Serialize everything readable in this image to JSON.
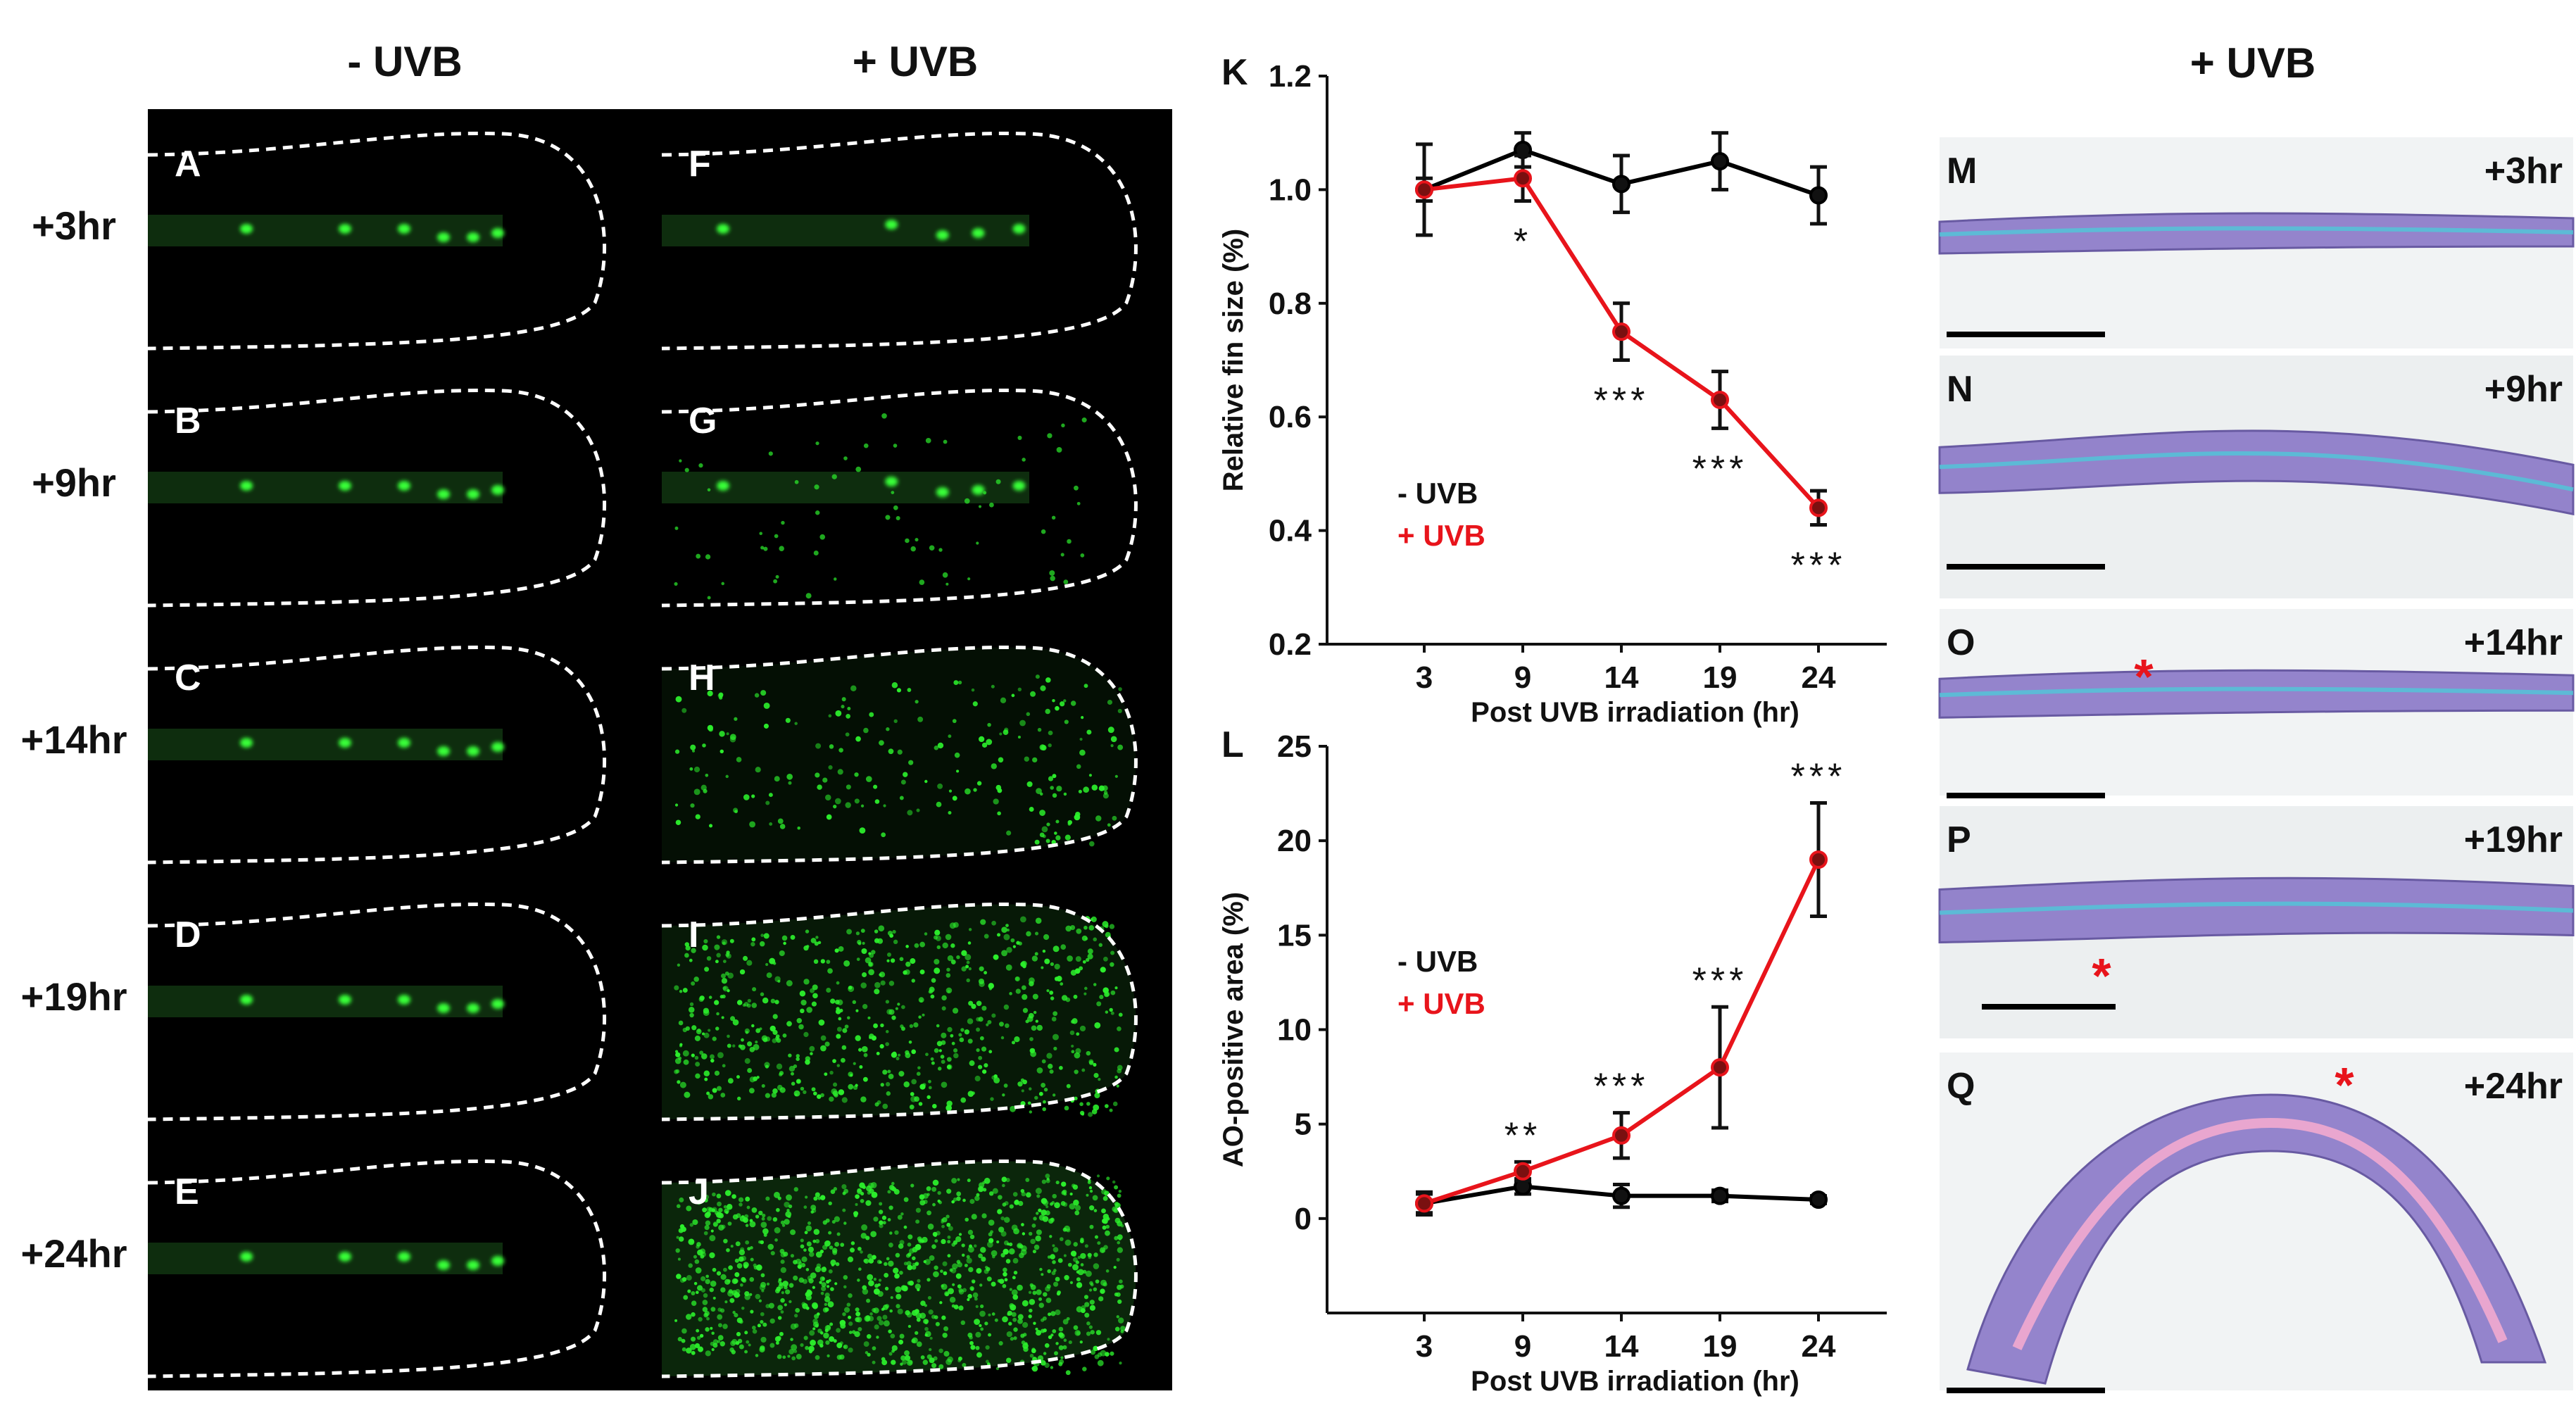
{
  "headers": {
    "minus": "- UVB",
    "plus": "+ UVB",
    "histo": "+ UVB"
  },
  "rows": [
    "+3hr",
    "+9hr",
    "+14hr",
    "+19hr",
    "+24hr"
  ],
  "panels_left": [
    "A",
    "B",
    "C",
    "D",
    "E"
  ],
  "panels_right": [
    "F",
    "G",
    "H",
    "I",
    "J"
  ],
  "histology": [
    {
      "panel": "M",
      "time": "+3hr"
    },
    {
      "panel": "N",
      "time": "+9hr"
    },
    {
      "panel": "O",
      "time": "+14hr"
    },
    {
      "panel": "P",
      "time": "+19hr"
    },
    {
      "panel": "Q",
      "time": "+24hr"
    }
  ],
  "chart_data": [
    {
      "panel": "K",
      "type": "line",
      "xlabel": "Post UVB irradiation (hr)",
      "ylabel": "Relative fin size (%)",
      "categories": [
        3,
        9,
        14,
        19,
        24
      ],
      "ylim": [
        0.2,
        1.2
      ],
      "yticks": [
        "0.2",
        "0.4",
        "0.6",
        "0.8",
        "1.0",
        "1.2"
      ],
      "series": [
        {
          "name": "- UVB",
          "color": "#000000",
          "values": [
            1.0,
            1.07,
            1.01,
            1.05,
            0.99
          ],
          "errors": [
            0.08,
            0.03,
            0.05,
            0.05,
            0.05
          ]
        },
        {
          "name": "+ UVB",
          "color": "#e8141b",
          "values": [
            1.0,
            1.02,
            0.75,
            0.63,
            0.44
          ],
          "errors": [
            0.02,
            0.04,
            0.05,
            0.05,
            0.03
          ]
        }
      ],
      "annotations": [
        "",
        "*",
        "***",
        "***",
        "***"
      ],
      "legend": {
        "minus": "- UVB",
        "plus": "+ UVB"
      }
    },
    {
      "panel": "L",
      "type": "line",
      "xlabel": "Post UVB irradiation (hr)",
      "ylabel": "AO-positive area (%)",
      "categories": [
        3,
        9,
        14,
        19,
        24
      ],
      "ylim": [
        -5,
        25
      ],
      "yticks": [
        "0",
        "5",
        "10",
        "15",
        "20",
        "25"
      ],
      "series": [
        {
          "name": "- UVB",
          "color": "#000000",
          "values": [
            0.8,
            1.7,
            1.2,
            1.2,
            1.0
          ],
          "errors": [
            0.6,
            0.4,
            0.6,
            0.3,
            0.2
          ]
        },
        {
          "name": "+ UVB",
          "color": "#e8141b",
          "values": [
            0.8,
            2.5,
            4.4,
            8.0,
            19.0
          ],
          "errors": [
            0.5,
            0.5,
            1.2,
            3.2,
            3.0
          ]
        }
      ],
      "annotations": [
        "",
        "**",
        "***",
        "***",
        "***"
      ],
      "legend": {
        "minus": "-  UVB",
        "plus": "+ UVB"
      }
    }
  ],
  "colors": {
    "red": "#e8141b",
    "green": "#22dd22",
    "purple": "#8a78c8"
  }
}
